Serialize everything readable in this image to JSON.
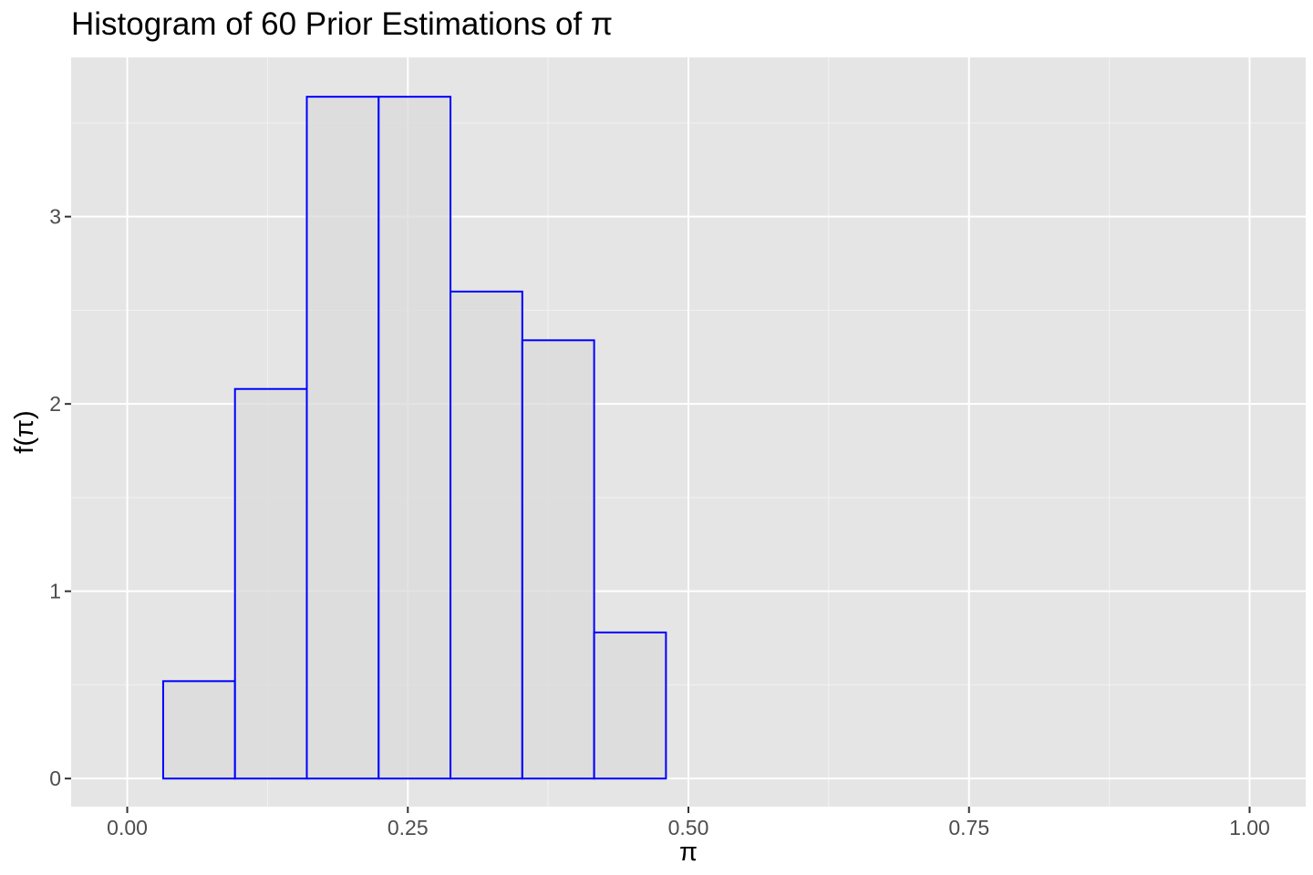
{
  "chart_data": {
    "type": "bar",
    "subtype": "histogram",
    "title": "Histogram of 60 Prior Estimations of π",
    "xlabel": "π",
    "ylabel": "f(π)",
    "xlim": [
      -0.05,
      1.05
    ],
    "ylim": [
      -0.15,
      3.85
    ],
    "x_ticks": [
      0.0,
      0.25,
      0.5,
      0.75,
      1.0
    ],
    "x_tick_labels": [
      "0.00",
      "0.25",
      "0.50",
      "0.75",
      "1.00"
    ],
    "y_ticks": [
      0,
      1,
      2,
      3
    ],
    "y_tick_labels": [
      "0",
      "1",
      "2",
      "3"
    ],
    "grid": true,
    "bar_fill": "#d9d9d9",
    "bar_outline": "#0000ff",
    "panel_background": "#e5e5e5",
    "bins": [
      {
        "start": 0.032,
        "end": 0.096,
        "density": 0.52
      },
      {
        "start": 0.096,
        "end": 0.16,
        "density": 2.08
      },
      {
        "start": 0.16,
        "end": 0.224,
        "density": 3.64
      },
      {
        "start": 0.224,
        "end": 0.288,
        "density": 3.64
      },
      {
        "start": 0.288,
        "end": 0.352,
        "density": 2.6
      },
      {
        "start": 0.352,
        "end": 0.416,
        "density": 2.34
      },
      {
        "start": 0.416,
        "end": 0.48,
        "density": 0.78
      }
    ]
  }
}
